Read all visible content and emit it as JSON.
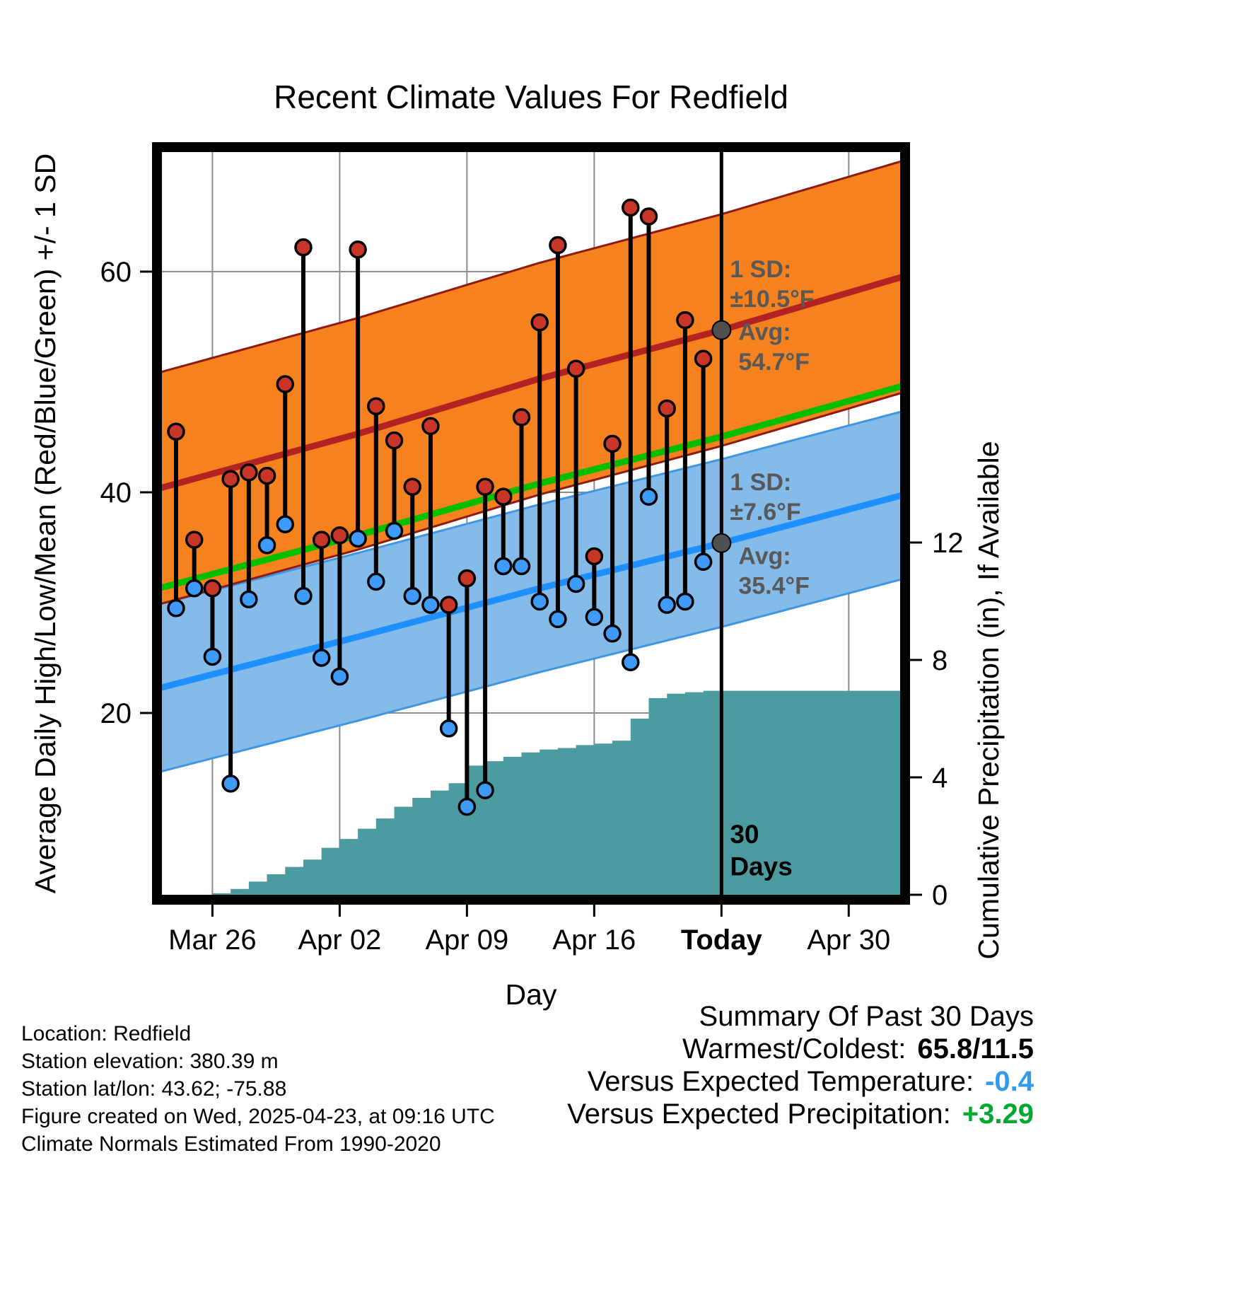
{
  "chart_data": {
    "type": "line",
    "title": "Recent Climate Values For Redfield",
    "xlabel": "Day",
    "ylabel_left": "Average Daily High/Low/Mean (Red/Blue/Green) +/- 1 SD",
    "ylabel_right": "Cumulative Precipitation (in), If Available",
    "x_ticks": [
      {
        "label": "Mar 26",
        "day": 2,
        "bold": false
      },
      {
        "label": "Apr 02",
        "day": 9,
        "bold": false
      },
      {
        "label": "Apr 09",
        "day": 16,
        "bold": false
      },
      {
        "label": "Apr 16",
        "day": 23,
        "bold": false
      },
      {
        "label": "Today",
        "day": 30,
        "bold": true
      },
      {
        "label": "Apr 30",
        "day": 37,
        "bold": false
      }
    ],
    "y_left_ticks": [
      20,
      40,
      60
    ],
    "y_right_ticks": [
      0,
      4,
      8,
      12
    ],
    "day_range": [
      -1.05,
      40.1
    ],
    "temp_axis_range": [
      3.1,
      71.3
    ],
    "precip_axis_range": [
      0,
      25.5
    ],
    "today_day": 30,
    "daily": {
      "dates": [
        "Mar 24",
        "Mar 25",
        "Mar 26",
        "Mar 27",
        "Mar 28",
        "Mar 29",
        "Mar 30",
        "Mar 31",
        "Apr 01",
        "Apr 02",
        "Apr 03",
        "Apr 04",
        "Apr 05",
        "Apr 06",
        "Apr 07",
        "Apr 08",
        "Apr 09",
        "Apr 10",
        "Apr 11",
        "Apr 12",
        "Apr 13",
        "Apr 14",
        "Apr 15",
        "Apr 16",
        "Apr 17",
        "Apr 18",
        "Apr 19",
        "Apr 20",
        "Apr 21",
        "Apr 22"
      ],
      "highs": [
        45.5,
        35.7,
        31.3,
        41.2,
        41.8,
        41.5,
        49.8,
        62.2,
        35.7,
        36.1,
        62.0,
        47.8,
        44.7,
        40.5,
        46.0,
        29.8,
        32.2,
        40.5,
        39.6,
        46.8,
        55.4,
        62.4,
        51.2,
        34.2,
        44.4,
        65.8,
        65.0,
        47.6,
        55.6,
        52.1
      ],
      "lows": [
        29.5,
        31.3,
        25.1,
        13.6,
        30.3,
        35.2,
        37.1,
        30.6,
        25.0,
        23.3,
        35.8,
        31.9,
        36.5,
        30.6,
        29.8,
        18.6,
        11.5,
        13.0,
        33.3,
        33.3,
        30.1,
        28.5,
        31.7,
        28.7,
        27.2,
        24.6,
        39.6,
        29.8,
        30.1,
        33.7
      ]
    },
    "normal_high": {
      "days": [
        -1.05,
        10,
        20,
        30,
        40.1
      ],
      "values": [
        40.3,
        45.3,
        50.3,
        54.7,
        59.6
      ],
      "sd": 10.5
    },
    "normal_low": {
      "days": [
        -1.05,
        10,
        20,
        30,
        40.1
      ],
      "values": [
        22.2,
        26.9,
        31.3,
        35.4,
        39.8
      ],
      "sd": 7.6
    },
    "precip_cumulative": {
      "days": [
        -1.05,
        2,
        3,
        4,
        5,
        6,
        7,
        8,
        9,
        10,
        11,
        12,
        13,
        14,
        15,
        16,
        17,
        18,
        19,
        20,
        21,
        22,
        23,
        24,
        25,
        26,
        27,
        28,
        29,
        40.1
      ],
      "values": [
        0,
        0.05,
        0.2,
        0.45,
        0.7,
        0.95,
        1.2,
        1.6,
        1.9,
        2.25,
        2.6,
        3.0,
        3.3,
        3.55,
        3.8,
        4.4,
        4.55,
        4.7,
        4.85,
        4.95,
        5.0,
        5.1,
        5.15,
        5.25,
        6.0,
        6.7,
        6.85,
        6.9,
        6.95,
        6.95
      ]
    },
    "annotations": {
      "high_sd_label": "1 SD:",
      "high_sd_value": "±10.5°F",
      "high_avg_label": "Avg:",
      "high_avg_value": "54.7°F",
      "high_avg": 54.7,
      "low_sd_label": "1 SD:",
      "low_sd_value": "±7.6°F",
      "low_avg_label": "Avg:",
      "low_avg_value": "35.4°F",
      "low_avg": 35.4,
      "period_line1": "30",
      "period_line2": "Days"
    },
    "colors": {
      "high_band": "#F5821F",
      "high_band_edge": "#8E1A12",
      "high_line": "#B22222",
      "low_band": "#85BBE8",
      "low_band_edge": "#4095E0",
      "low_line": "#1E8FFF",
      "mean_line": "#00BE00",
      "precip_fill": "#4C9BA1",
      "high_dot": "#C8362A",
      "low_dot": "#3E9BFA",
      "gray": "#4F4F4F",
      "grid": "#8C8C8C"
    }
  },
  "footer_left": {
    "lines": [
      "Location: Redfield",
      "Station elevation: 380.39 m",
      "Station lat/lon: 43.62; -75.88",
      "Figure created on Wed, 2025-04-23, at 09:16 UTC",
      "Climate Normals Estimated From 1990-2020"
    ]
  },
  "summary": {
    "title": "Summary Of Past 30 Days",
    "rows": [
      {
        "label": "Warmest/Coldest:",
        "value": "65.8/11.5",
        "color": "#000000"
      },
      {
        "label": "Versus Expected Temperature:",
        "value": "-0.4",
        "color": "#2E9BF0"
      },
      {
        "label": "Versus Expected Precipitation:",
        "value": "+3.29",
        "color": "#00A832"
      }
    ]
  }
}
